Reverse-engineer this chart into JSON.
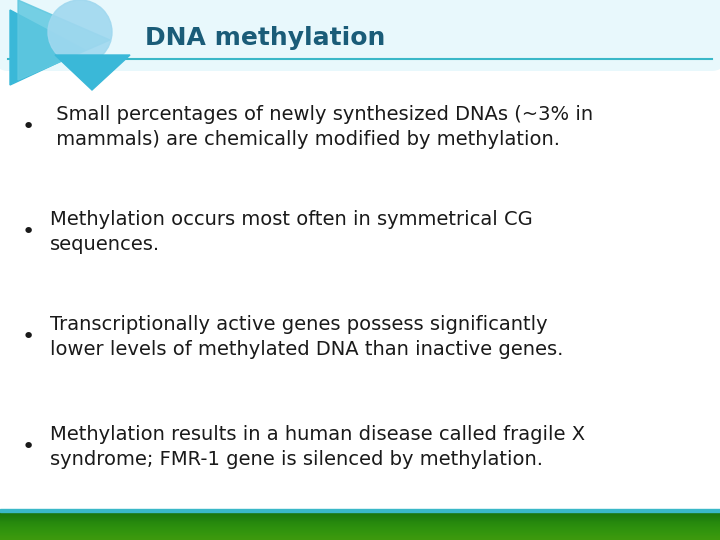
{
  "title": "DNA methylation",
  "title_color": "#1a5c78",
  "title_fontsize": 18,
  "background_color": "#ffffff",
  "box_edge_color": "#3ab8c8",
  "box_face_color": "#ffffff",
  "bullet_color": "#1a1a1a",
  "bullet_fontsize": 14,
  "bullets": [
    " Small percentages of newly synthesized DNAs (~3% in\n mammals) are chemically modified by methylation.",
    "Methylation occurs most often in symmetrical CG\nsequences.",
    "Transcriptionally active genes possess significantly\nlower levels of methylated DNA than inactive genes.",
    "Methylation results in a human disease called fragile X\nsyndrome; FMR-1 gene is silenced by methylation."
  ],
  "bottom_bar_color_top": "#6aaa3a",
  "bottom_bar_color_bottom": "#2d7a10",
  "triangle_color1": "#3ab8d8",
  "triangle_color2": "#60c8e0",
  "circle_color": "#a0d8ef",
  "dna_watermark_color": "#b0eef8",
  "header_bg_color": "#e8f8fc",
  "header_line_color": "#3ab8c8"
}
